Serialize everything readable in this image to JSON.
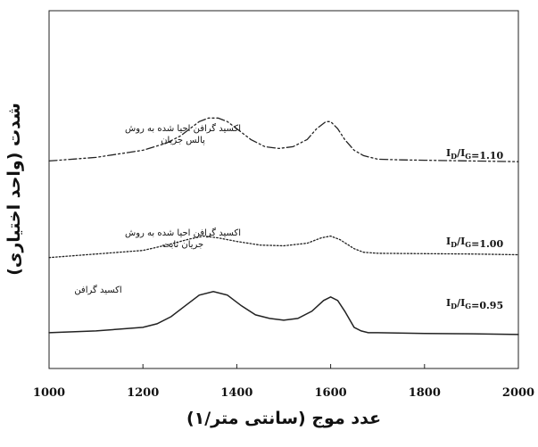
{
  "chart_data": {
    "type": "line",
    "title": "",
    "xlabel": "عدد موج (سانتی متر/۱)",
    "ylabel": "شدت (واحد اختیاری)",
    "xlim": [
      1000,
      2000
    ],
    "xticks": [
      "1000",
      "1200",
      "1400",
      "1600",
      "1800",
      "2000"
    ],
    "yticks": [],
    "grid": false,
    "legend": "none",
    "series": [
      {
        "label_lines": [
          "اکسید گرافن احیا شده به روش",
          "پالس جریان"
        ],
        "ratio_main": "I",
        "ratio_d": "D",
        "ratio_mid": "/I",
        "ratio_g": "G",
        "ratio_value": "=1.10",
        "line_style": "dash-dot-dot",
        "x": [
          1000,
          1100,
          1150,
          1200,
          1250,
          1280,
          1300,
          1320,
          1340,
          1360,
          1380,
          1400,
          1430,
          1460,
          1490,
          1520,
          1550,
          1570,
          1590,
          1600,
          1615,
          1630,
          1650,
          1670,
          1700,
          1750,
          1800,
          1900,
          2000
        ],
        "y": [
          0.58,
          0.59,
          0.6,
          0.61,
          0.63,
          0.65,
          0.67,
          0.69,
          0.7,
          0.7,
          0.69,
          0.67,
          0.64,
          0.62,
          0.615,
          0.62,
          0.64,
          0.67,
          0.69,
          0.69,
          0.67,
          0.64,
          0.61,
          0.595,
          0.585,
          0.583,
          0.582,
          0.58,
          0.578
        ]
      },
      {
        "label_lines": [
          "اکسید گرافن احیا شده به روش",
          "جریان ثابت"
        ],
        "ratio_main": "I",
        "ratio_d": "D",
        "ratio_mid": "/I",
        "ratio_g": "G",
        "ratio_value": "=1.00",
        "line_style": "dotted",
        "x": [
          1000,
          1100,
          1150,
          1200,
          1250,
          1300,
          1330,
          1360,
          1400,
          1450,
          1500,
          1550,
          1580,
          1600,
          1620,
          1650,
          1670,
          1700,
          1800,
          1900,
          2000
        ],
        "y": [
          0.31,
          0.32,
          0.325,
          0.33,
          0.345,
          0.362,
          0.37,
          0.365,
          0.355,
          0.345,
          0.343,
          0.35,
          0.365,
          0.37,
          0.36,
          0.335,
          0.325,
          0.322,
          0.321,
          0.32,
          0.318
        ]
      },
      {
        "label_lines": [
          "اکسید گرافن"
        ],
        "ratio_main": "I",
        "ratio_d": "D",
        "ratio_mid": "/I",
        "ratio_g": "G",
        "ratio_value": "=0.95",
        "line_style": "solid",
        "x": [
          1000,
          1100,
          1150,
          1200,
          1230,
          1260,
          1290,
          1320,
          1350,
          1380,
          1410,
          1440,
          1470,
          1500,
          1530,
          1560,
          1585,
          1600,
          1615,
          1630,
          1650,
          1665,
          1680,
          1700,
          1800,
          1900,
          2000
        ],
        "y": [
          0.1,
          0.105,
          0.11,
          0.115,
          0.125,
          0.145,
          0.175,
          0.205,
          0.215,
          0.205,
          0.175,
          0.15,
          0.14,
          0.135,
          0.14,
          0.16,
          0.19,
          0.2,
          0.19,
          0.16,
          0.115,
          0.105,
          0.1,
          0.1,
          0.098,
          0.097,
          0.095
        ]
      }
    ]
  }
}
